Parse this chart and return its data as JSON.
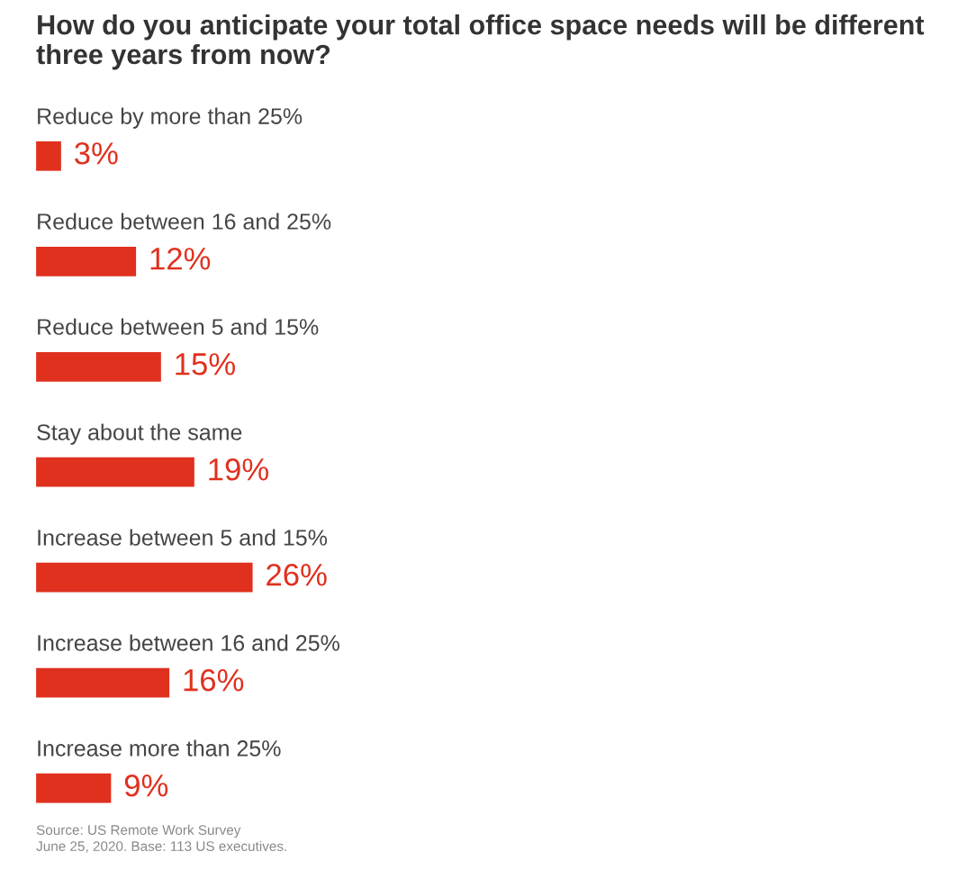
{
  "chart_data": {
    "type": "bar",
    "orientation": "horizontal",
    "title": "How do you anticipate your total office space needs will be different three years from now?",
    "categories": [
      "Reduce by more than 25%",
      "Reduce between 16 and 25%",
      "Reduce between 5 and 15%",
      "Stay about the same",
      "Increase between 5 and 15%",
      "Increase between 16 and 25%",
      "Increase more than 25%"
    ],
    "values": [
      3,
      12,
      15,
      19,
      26,
      16,
      9
    ],
    "value_labels": [
      "3%",
      "12%",
      "15%",
      "19%",
      "26%",
      "16%",
      "9%"
    ],
    "color": "#e0301e",
    "annotations": [
      "Source: US Remote Work Survey",
      "June 25, 2020. Base: 113 US executives."
    ]
  }
}
